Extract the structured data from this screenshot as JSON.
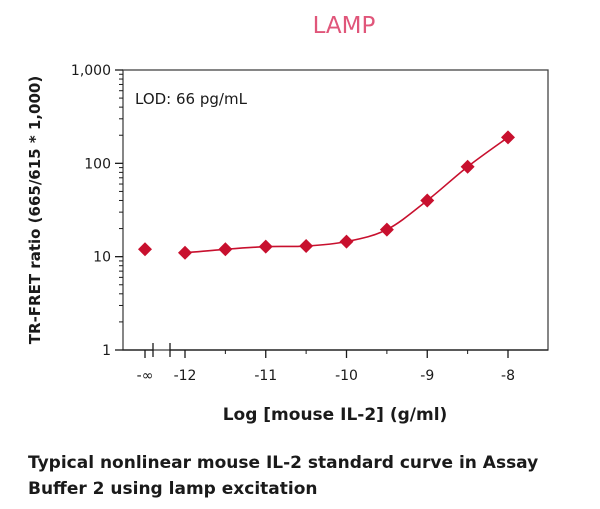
{
  "chart_data": {
    "type": "scatter",
    "title": "LAMP",
    "xlabel": "Log [mouse IL-2] (g/ml)",
    "ylabel": "TR-FRET ratio (665/615 * 1,000)",
    "annotation": "LOD: 66 pg/mL",
    "y_scale": "log",
    "ylim": [
      1,
      1000
    ],
    "y_ticks": [
      {
        "value": 1,
        "label": "1"
      },
      {
        "value": 10,
        "label": "10"
      },
      {
        "value": 100,
        "label": "100"
      },
      {
        "value": 1000,
        "label": "1,000"
      }
    ],
    "x_ticks": [
      {
        "value": "-∞",
        "label": "-∞"
      },
      {
        "value": -12,
        "label": "-12"
      },
      {
        "value": -11,
        "label": "-11"
      },
      {
        "value": -10,
        "label": "-10"
      },
      {
        "value": -9,
        "label": "-9"
      },
      {
        "value": -8,
        "label": "-8"
      }
    ],
    "x_axis_break": true,
    "legend": "none",
    "grid": false,
    "series": [
      {
        "color": "#c8102e",
        "points": [
          {
            "x": "-∞",
            "y": 12
          },
          {
            "x": -12,
            "y": 11
          },
          {
            "x": -11.5,
            "y": 12
          },
          {
            "x": -11,
            "y": 12.8
          },
          {
            "x": -10.5,
            "y": 13
          },
          {
            "x": -10,
            "y": 14.5
          },
          {
            "x": -9.5,
            "y": 19.5
          },
          {
            "x": -9,
            "y": 40
          },
          {
            "x": -8.5,
            "y": 92
          },
          {
            "x": -8,
            "y": 190
          }
        ]
      }
    ]
  },
  "caption": "Typical nonlinear mouse IL-2 standard curve in Assay Buffer 2 using lamp excitation",
  "colors": {
    "title": "#e0567a",
    "series": "#c8102e",
    "axis": "#1a1a1a",
    "frame": "#444444"
  }
}
